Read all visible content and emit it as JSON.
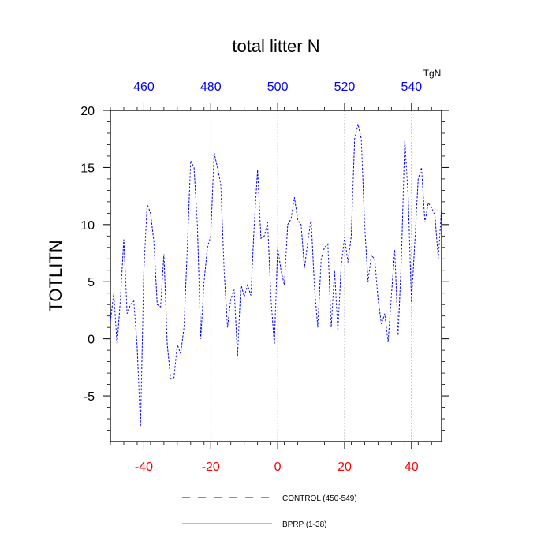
{
  "chart_data": {
    "type": "line",
    "title": "total litter N",
    "ylabel": "TOTLITN",
    "top_axis_label": "TgN",
    "xlim": [
      -50,
      49
    ],
    "ylim": [
      -9,
      20
    ],
    "x_ticks_bottom": [
      "-40",
      "-20",
      "0",
      "20",
      "40"
    ],
    "x_ticks_top": [
      "460",
      "480",
      "500",
      "520",
      "540"
    ],
    "y_ticks": [
      "20",
      "15",
      "10",
      "5",
      "0",
      "-5"
    ],
    "colors": {
      "control": "#0000ff",
      "bprp": "#ff0000",
      "bottom_ticks": "#ff0000",
      "top_ticks": "#0000ff",
      "grid": "#a0a0a0"
    },
    "grid_x": true,
    "series": [
      {
        "name": "CONTROL (450-549)",
        "style": "dashed",
        "color": "#0000ff",
        "x": [
          -50,
          -49,
          -48,
          -47,
          -46,
          -45,
          -44,
          -43,
          -42,
          -41,
          -40,
          -39,
          -38,
          -37,
          -36,
          -35,
          -34,
          -33,
          -32,
          -31,
          -30,
          -29,
          -28,
          -27,
          -26,
          -25,
          -24,
          -23,
          -22,
          -21,
          -20,
          -19,
          -18,
          -17,
          -16,
          -15,
          -14,
          -13,
          -12,
          -11,
          -10,
          -9,
          -8,
          -7,
          -6,
          -5,
          -4,
          -3,
          -2,
          -1,
          0,
          1,
          2,
          3,
          4,
          5,
          6,
          7,
          8,
          9,
          10,
          11,
          12,
          13,
          14,
          15,
          16,
          17,
          18,
          19,
          20,
          21,
          22,
          23,
          24,
          25,
          26,
          27,
          28,
          29,
          30,
          31,
          32,
          33,
          34,
          35,
          36,
          37,
          38,
          39,
          40,
          41,
          42,
          43,
          44,
          45,
          46,
          47,
          48,
          49
        ],
        "values": [
          1.5,
          4.0,
          -0.5,
          3.5,
          8.7,
          2.2,
          3.0,
          3.3,
          -0.7,
          -7.7,
          6.0,
          11.8,
          11.0,
          8.5,
          3.0,
          2.8,
          7.4,
          -0.5,
          -3.5,
          -3.4,
          -0.5,
          -1.3,
          1.0,
          8.0,
          15.6,
          15.0,
          10.0,
          0.0,
          5.0,
          8.0,
          9.0,
          16.3,
          15.0,
          13.5,
          6.0,
          1.0,
          3.5,
          4.3,
          -1.5,
          4.8,
          3.7,
          4.7,
          3.8,
          10.0,
          14.8,
          8.8,
          9.0,
          10.2,
          3.5,
          -0.5,
          8.0,
          6.0,
          4.7,
          10.0,
          10.5,
          12.4,
          10.4,
          10.0,
          6.2,
          8.5,
          10.5,
          4.5,
          1.0,
          7.0,
          8.0,
          8.3,
          1.0,
          6.0,
          0.7,
          6.5,
          8.9,
          6.7,
          9.0,
          17.5,
          18.8,
          17.5,
          10.0,
          5.0,
          7.3,
          7.0,
          3.5,
          1.3,
          2.2,
          -0.3,
          3.8,
          7.8,
          0.3,
          7.2,
          17.4,
          12.5,
          3.2,
          8.5,
          14.0,
          15.0,
          10.2,
          11.9,
          11.5,
          10.8,
          7.0,
          11.5
        ]
      },
      {
        "name": "BPRP (1-38)",
        "style": "solid",
        "color": "#ff0000",
        "x": [],
        "values": []
      }
    ]
  }
}
